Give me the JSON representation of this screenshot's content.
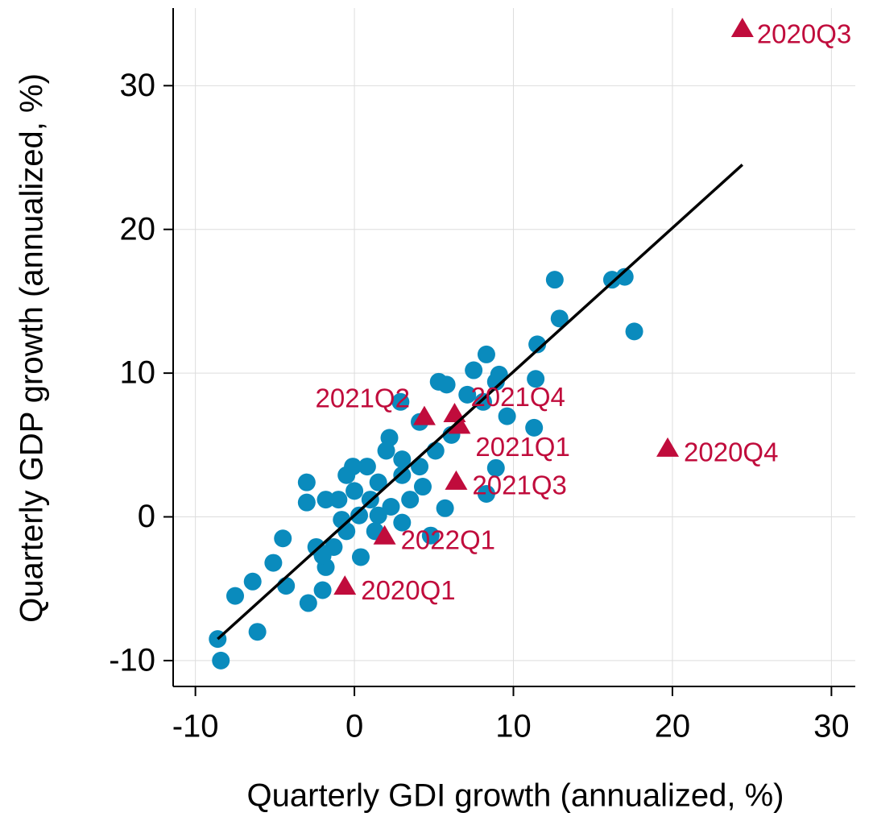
{
  "chart_data": {
    "type": "scatter",
    "xlabel": "Quarterly GDI growth (annualized, %)",
    "ylabel": "Quarterly GDP growth (annualized, %)",
    "xlim": [
      -11.4,
      31.5
    ],
    "ylim": [
      -11.8,
      35.4
    ],
    "xticks": [
      -10,
      0,
      10,
      20,
      30
    ],
    "yticks": [
      -10,
      0,
      10,
      20,
      30
    ],
    "grid": true,
    "series": [
      {
        "color": "#0a8bbd",
        "marker": "circle",
        "x": [
          -8.6,
          -8.4,
          -6.1,
          -7.5,
          -6.4,
          -5.1,
          -4.5,
          -4.3,
          -2.9,
          -2.0,
          -3.0,
          -1.8,
          -2.4,
          -3.0,
          -1.8,
          -0.5,
          -0.1,
          0.4,
          2.2,
          2.9,
          5.3,
          5.8,
          7.5,
          8.3,
          9.1,
          8.9,
          9.6,
          11.4,
          11.5,
          11.3,
          8.9,
          8.3,
          5.7,
          4.8,
          12.6,
          12.9,
          16.2,
          17.0,
          17.6,
          8.1,
          7.1,
          4.1,
          3.0,
          1.5,
          1.0,
          0.3,
          -0.5,
          -0.8,
          3.0,
          4.1,
          5.1,
          6.1,
          2.3,
          3.5,
          4.3,
          1.5,
          0.8,
          2.0,
          1.3,
          3.0,
          0.0,
          -1.0,
          -1.3,
          -2.0
        ],
        "values": [
          -8.5,
          -10.0,
          -8.0,
          -5.5,
          -4.5,
          -3.2,
          -1.5,
          -4.8,
          -6.0,
          -5.1,
          2.4,
          -3.5,
          -2.1,
          1.0,
          1.2,
          2.9,
          3.5,
          -2.8,
          5.5,
          8.0,
          9.4,
          9.2,
          10.2,
          11.3,
          9.9,
          9.4,
          7.0,
          9.6,
          12.0,
          6.2,
          3.4,
          1.6,
          0.6,
          -1.3,
          16.5,
          13.8,
          16.5,
          16.7,
          12.9,
          8.0,
          8.5,
          6.6,
          4.0,
          2.4,
          1.2,
          0.1,
          -1.0,
          -0.2,
          2.9,
          3.5,
          4.6,
          5.7,
          0.7,
          1.2,
          2.1,
          0.1,
          3.5,
          4.6,
          -1.0,
          -0.4,
          1.8,
          1.2,
          -2.1,
          -2.7
        ]
      },
      {
        "color": "#c00c3c",
        "marker": "triangle",
        "x": [
          24.4,
          19.7,
          4.4,
          6.3,
          6.6,
          6.4,
          1.9,
          -0.6
        ],
        "values": [
          34.0,
          4.8,
          7.0,
          7.2,
          6.4,
          2.5,
          -1.3,
          -4.8
        ],
        "labels": [
          "2020Q3",
          "2020Q4",
          "2021Q2",
          "2021Q4",
          "2021Q1",
          "2021Q3",
          "2022Q1",
          "2020Q1"
        ]
      }
    ],
    "fit_line": {
      "color": "#000000",
      "x": [
        -8.6,
        24.4
      ],
      "values": [
        -8.5,
        24.5
      ]
    }
  }
}
